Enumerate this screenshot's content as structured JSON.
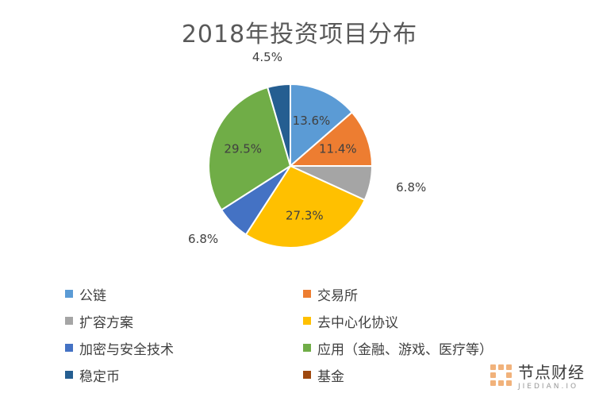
{
  "chart_data": {
    "type": "pie",
    "title": "2018年投资项目分布",
    "slices": [
      {
        "label": "公链",
        "value": 13.6,
        "value_label": "13.6%",
        "color": "#5b9bd5",
        "label_inside": true
      },
      {
        "label": "交易所",
        "value": 11.4,
        "value_label": "11.4%",
        "color": "#ed7d31",
        "label_inside": true
      },
      {
        "label": "扩容方案",
        "value": 6.8,
        "value_label": "6.8%",
        "color": "#a5a5a5",
        "label_inside": false
      },
      {
        "label": "去中心化协议",
        "value": 27.3,
        "value_label": "27.3%",
        "color": "#ffc000",
        "label_inside": true
      },
      {
        "label": "加密与安全技术",
        "value": 6.8,
        "value_label": "6.8%",
        "color": "#4472c4",
        "label_inside": false
      },
      {
        "label": "应用（金融、游戏、医疗等）",
        "value": 29.5,
        "value_label": "29.5%",
        "color": "#70ad47",
        "label_inside": true
      },
      {
        "label": "稳定币",
        "value": 4.5,
        "value_label": "4.5%",
        "color": "#255e91",
        "label_inside": false
      },
      {
        "label": "基金",
        "value": 0,
        "value_label": "",
        "color": "#9e480e",
        "label_inside": false
      }
    ],
    "legend_position": "bottom"
  },
  "watermark": {
    "name": "节点财经",
    "sub": "JIEDIAN.IO"
  }
}
